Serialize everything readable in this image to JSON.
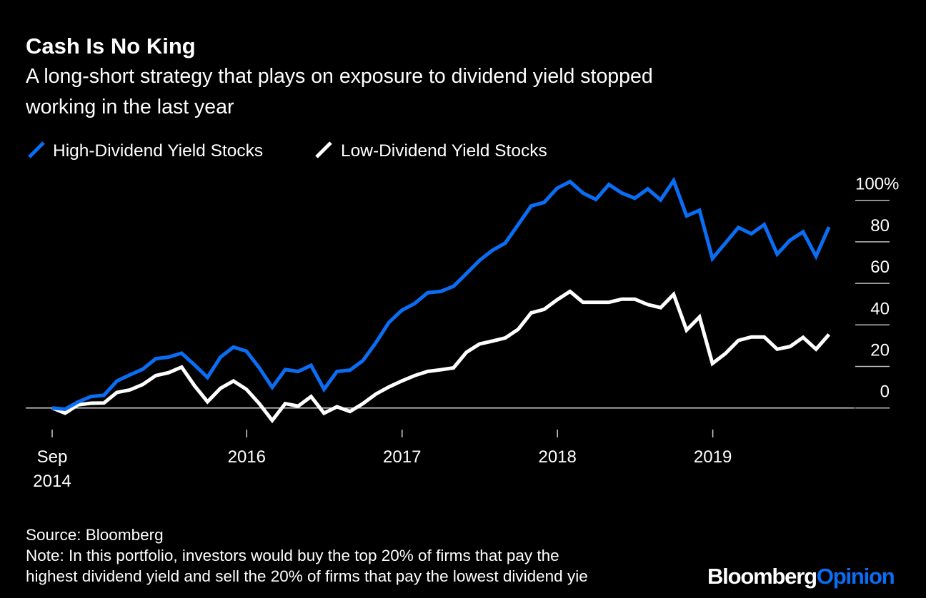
{
  "chart_data": {
    "type": "line",
    "title": "Cash Is No King",
    "subtitle_lines": [
      "A long-short strategy that plays on exposure to dividend yield stopped",
      "working in the last year"
    ],
    "xlabel": "",
    "ylabel": "",
    "x_start": "2014-09",
    "x_end": "2019-09",
    "x_frequency": "monthly",
    "x_ticks": [
      {
        "date": "2014-09",
        "label": [
          "Sep",
          "2014"
        ]
      },
      {
        "date": "2016-01",
        "label": [
          "2016"
        ]
      },
      {
        "date": "2017-01",
        "label": [
          "2017"
        ]
      },
      {
        "date": "2018-01",
        "label": [
          "2018"
        ]
      },
      {
        "date": "2019-01",
        "label": [
          "2019"
        ]
      }
    ],
    "y_ticks": [
      {
        "value": 0,
        "label": "0"
      },
      {
        "value": 20,
        "label": "20"
      },
      {
        "value": 40,
        "label": "40"
      },
      {
        "value": 60,
        "label": "60"
      },
      {
        "value": 80,
        "label": "80"
      },
      {
        "value": 100,
        "label": "100%"
      }
    ],
    "ylim": [
      0,
      110
    ],
    "grid": "horizontal ticks on right",
    "legend_position": "top-left",
    "series": [
      {
        "name": "High-Dividend Yield Stocks",
        "color": "#0a6ef5",
        "values": [
          0,
          -0.6,
          2.9,
          5.5,
          6.1,
          13,
          15.9,
          18.7,
          23.7,
          24.5,
          26.4,
          20.7,
          14.7,
          24.5,
          29.3,
          27.4,
          19.3,
          9.9,
          18.5,
          17.6,
          20.5,
          9,
          17.6,
          18.2,
          22.8,
          31.4,
          41.1,
          47,
          50.3,
          55.5,
          56.1,
          58.6,
          64.7,
          71,
          75.9,
          79.4,
          88.3,
          97.3,
          99,
          105.8,
          109,
          103.5,
          100.4,
          107.6,
          103.5,
          101,
          105.5,
          100.2,
          109.5,
          92.5,
          95.2,
          72,
          79.4,
          86.9,
          83.9,
          88.3,
          74.1,
          80.8,
          84.8,
          73.1,
          87.1
        ]
      },
      {
        "name": "Low-Dividend Yield Stocks",
        "color": "#ffffff",
        "values": [
          0,
          -2.5,
          1.5,
          2.3,
          2.4,
          7.5,
          8.7,
          11.3,
          15.6,
          17,
          19.7,
          10.7,
          3,
          9.5,
          13,
          9,
          2.1,
          -6,
          2.1,
          0.9,
          5.5,
          -2.5,
          0.6,
          -1.7,
          2.1,
          6.7,
          10.1,
          13,
          15.6,
          17.6,
          18.4,
          19.3,
          26.8,
          30.8,
          32.2,
          33.7,
          37.9,
          45.8,
          47.5,
          52.1,
          56.1,
          50.9,
          50.9,
          50.9,
          52.4,
          52.4,
          49.8,
          48.3,
          54.7,
          37.5,
          43.8,
          21.4,
          26.2,
          32.5,
          34.2,
          34.2,
          28.3,
          29.6,
          34,
          28.3,
          35.4
        ]
      }
    ]
  },
  "footer": {
    "source": "Source: Bloomberg",
    "note_line1": "Note: In this portfolio, investors would buy the top 20% of firms that pay the",
    "note_line2": "highest dividend yield and sell the 20% of firms that pay the lowest dividend yie"
  },
  "logo": {
    "part1": "Bloomberg",
    "part2": "Opinion",
    "part1_color": "#ffffff",
    "part2_color": "#0a6ef5"
  }
}
